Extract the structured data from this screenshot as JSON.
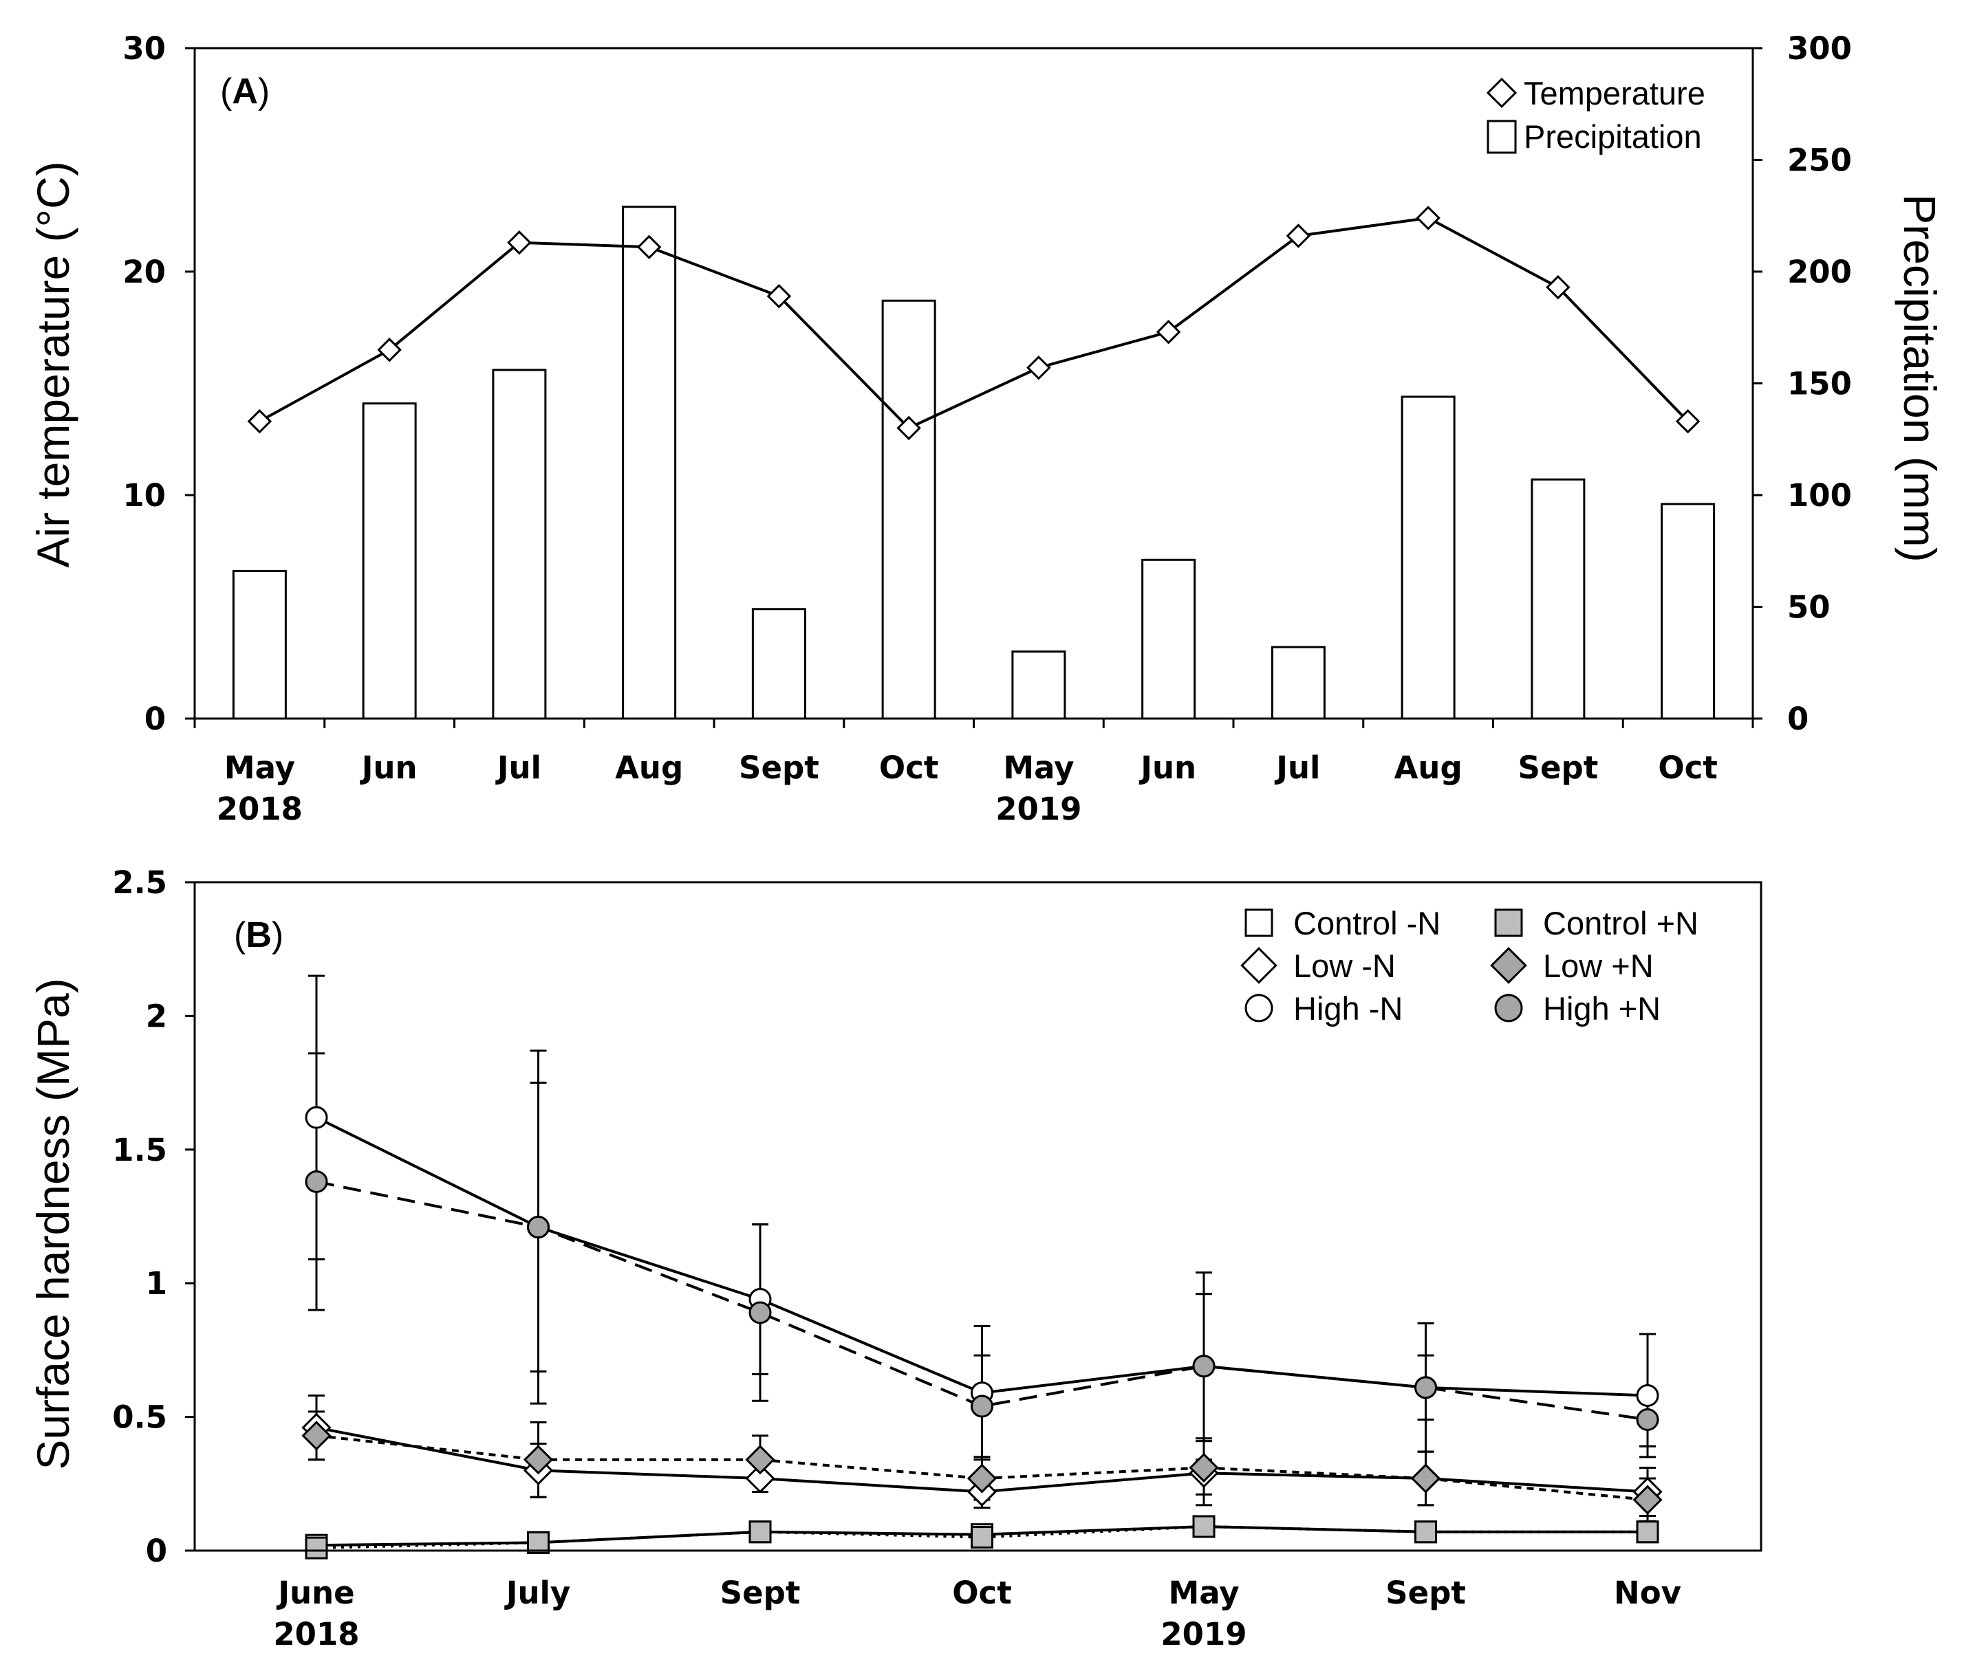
{
  "chart_data": [
    {
      "type": "bar+line",
      "panel_label": "A",
      "categories": [
        "May",
        "Jun",
        "Jul",
        "Aug",
        "Sept",
        "Oct",
        "May",
        "Jun",
        "Jul",
        "Aug",
        "Sept",
        "Oct"
      ],
      "year_labels": [
        {
          "index": 0,
          "label": "2018"
        },
        {
          "index": 6,
          "label": "2019"
        }
      ],
      "series": [
        {
          "name": "Temperature",
          "axis": "left",
          "kind": "line",
          "marker": "diamond-open",
          "values": [
            13.3,
            16.5,
            21.3,
            21.1,
            18.9,
            13.0,
            15.7,
            17.3,
            21.6,
            22.4,
            19.3,
            13.3
          ]
        },
        {
          "name": "Precipitation",
          "axis": "right",
          "kind": "bar",
          "values": [
            66,
            141,
            156,
            229,
            49,
            187,
            30,
            71,
            32,
            144,
            107,
            96
          ]
        }
      ],
      "ylabel": "Air temperature (°C)",
      "y2label": "Precipitation (mm)",
      "ylim": [
        0,
        30
      ],
      "yticks": [
        "0",
        "10",
        "20",
        "30"
      ],
      "y2lim": [
        0,
        300
      ],
      "y2ticks": [
        "0",
        "50",
        "100",
        "150",
        "200",
        "250",
        "300"
      ],
      "legend": [
        {
          "label": "Temperature",
          "marker": "diamond-open"
        },
        {
          "label": "Precipitation",
          "marker": "bar-open"
        }
      ]
    },
    {
      "type": "line",
      "panel_label": "B",
      "categories": [
        "June",
        "July",
        "Sept",
        "Oct",
        "May",
        "Sept",
        "Nov"
      ],
      "year_labels": [
        {
          "index": 0,
          "label": "2018"
        },
        {
          "index": 4,
          "label": "2019"
        }
      ],
      "ylabel": "Surface hardness (MPa)",
      "ylim": [
        0,
        2.5
      ],
      "yticks": [
        "0",
        "0.5",
        "1",
        "1.5",
        "2",
        "2.5"
      ],
      "series": [
        {
          "name": "Control -N",
          "marker": "square",
          "fill": "#ffffff",
          "dash": "solid",
          "values": [
            0.02,
            0.03,
            0.07,
            0.06,
            0.09,
            0.07,
            0.07
          ],
          "errors": [
            0.01,
            0.01,
            0.02,
            0.02,
            0.03,
            0.02,
            0.02
          ]
        },
        {
          "name": "Control +N",
          "marker": "square",
          "fill": "#bdbdbd",
          "dash": "dotted",
          "values": [
            0.01,
            0.03,
            0.07,
            0.05,
            0.09,
            0.07,
            0.07
          ],
          "errors": [
            0.01,
            0.01,
            0.02,
            0.02,
            0.02,
            0.02,
            0.02
          ]
        },
        {
          "name": "Low -N",
          "marker": "diamond",
          "fill": "#ffffff",
          "dash": "solid",
          "values": [
            0.46,
            0.3,
            0.27,
            0.22,
            0.29,
            0.27,
            0.22
          ],
          "errors": [
            0.12,
            0.1,
            0.05,
            0.06,
            0.12,
            0.1,
            0.09
          ]
        },
        {
          "name": "Low +N",
          "marker": "diamond",
          "fill": "#a6a6a6",
          "dash": "short-dash",
          "values": [
            0.43,
            0.34,
            0.34,
            0.27,
            0.31,
            0.27,
            0.19
          ],
          "errors": [
            0.09,
            0.14,
            0.09,
            0.08,
            0.1,
            0.1,
            0.08
          ]
        },
        {
          "name": "High -N",
          "marker": "circle",
          "fill": "#ffffff",
          "dash": "solid",
          "values": [
            1.62,
            1.21,
            0.94,
            0.59,
            0.69,
            0.61,
            0.58
          ],
          "errors": [
            0.53,
            0.66,
            0.28,
            0.25,
            0.35,
            0.24,
            0.23
          ]
        },
        {
          "name": "High +N",
          "marker": "circle",
          "fill": "#a6a6a6",
          "dash": "long-dash",
          "values": [
            1.38,
            1.21,
            0.89,
            0.54,
            0.69,
            0.61,
            0.49
          ],
          "errors": [
            0.48,
            0.54,
            0.33,
            0.19,
            0.27,
            0.12,
            0.1
          ]
        }
      ],
      "legend": [
        {
          "label": "Control -N",
          "marker": "square",
          "fill": "#ffffff"
        },
        {
          "label": "Control +N",
          "marker": "square",
          "fill": "#bdbdbd"
        },
        {
          "label": "Low -N",
          "marker": "diamond",
          "fill": "#ffffff"
        },
        {
          "label": "Low +N",
          "marker": "diamond",
          "fill": "#a6a6a6"
        },
        {
          "label": "High -N",
          "marker": "circle",
          "fill": "#ffffff"
        },
        {
          "label": "High +N",
          "marker": "circle",
          "fill": "#a6a6a6"
        }
      ]
    }
  ]
}
